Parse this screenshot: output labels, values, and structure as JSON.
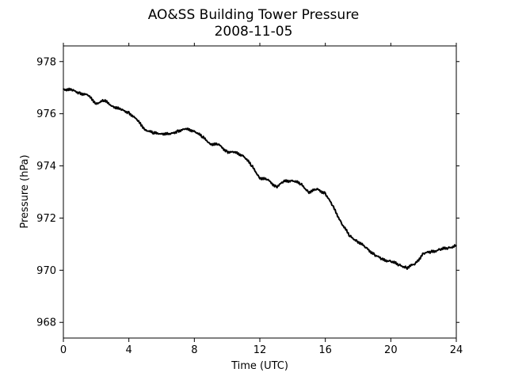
{
  "chart_data": {
    "type": "line",
    "title": "AO&SS Building Tower Pressure",
    "subtitle": "2008-11-05",
    "xlabel": "Time (UTC)",
    "ylabel": "Pressure (hPa)",
    "xlim": [
      0,
      24
    ],
    "ylim": [
      967.4,
      978.6
    ],
    "xticks": [
      0,
      4,
      8,
      12,
      16,
      20,
      24
    ],
    "yticks": [
      968,
      970,
      972,
      974,
      976,
      978
    ],
    "grid": false,
    "legend": "none",
    "line_color": "#000000",
    "series": [
      {
        "x": [
          0,
          0.5,
          1.0,
          1.5,
          2.0,
          2.5,
          3.0,
          3.5,
          4.0,
          4.5,
          5.0,
          5.5,
          6.0,
          6.5,
          7.0,
          7.5,
          8.0,
          8.5,
          9.0,
          9.5,
          10.0,
          10.5,
          11.0,
          11.5,
          12.0,
          12.5,
          13.0,
          13.5,
          14.0,
          14.5,
          15.0,
          15.5,
          16.0,
          16.5,
          17.0,
          17.5,
          18.0,
          18.5,
          19.0,
          19.5,
          20.0,
          20.5,
          21.0,
          21.5,
          22.0,
          22.5,
          23.0,
          23.5,
          24.0
        ],
        "y": [
          976.95,
          976.9,
          976.8,
          976.7,
          976.4,
          976.5,
          976.3,
          976.15,
          976.05,
          975.75,
          975.4,
          975.25,
          975.25,
          975.2,
          975.35,
          975.4,
          975.35,
          975.1,
          974.85,
          974.8,
          974.55,
          974.5,
          974.4,
          974.0,
          973.55,
          973.45,
          973.2,
          973.4,
          973.45,
          973.3,
          973.0,
          973.1,
          972.95,
          972.4,
          971.8,
          971.3,
          971.1,
          970.85,
          970.6,
          970.4,
          970.35,
          970.2,
          970.1,
          970.25,
          970.65,
          970.7,
          970.8,
          970.85,
          970.95
        ]
      }
    ]
  }
}
